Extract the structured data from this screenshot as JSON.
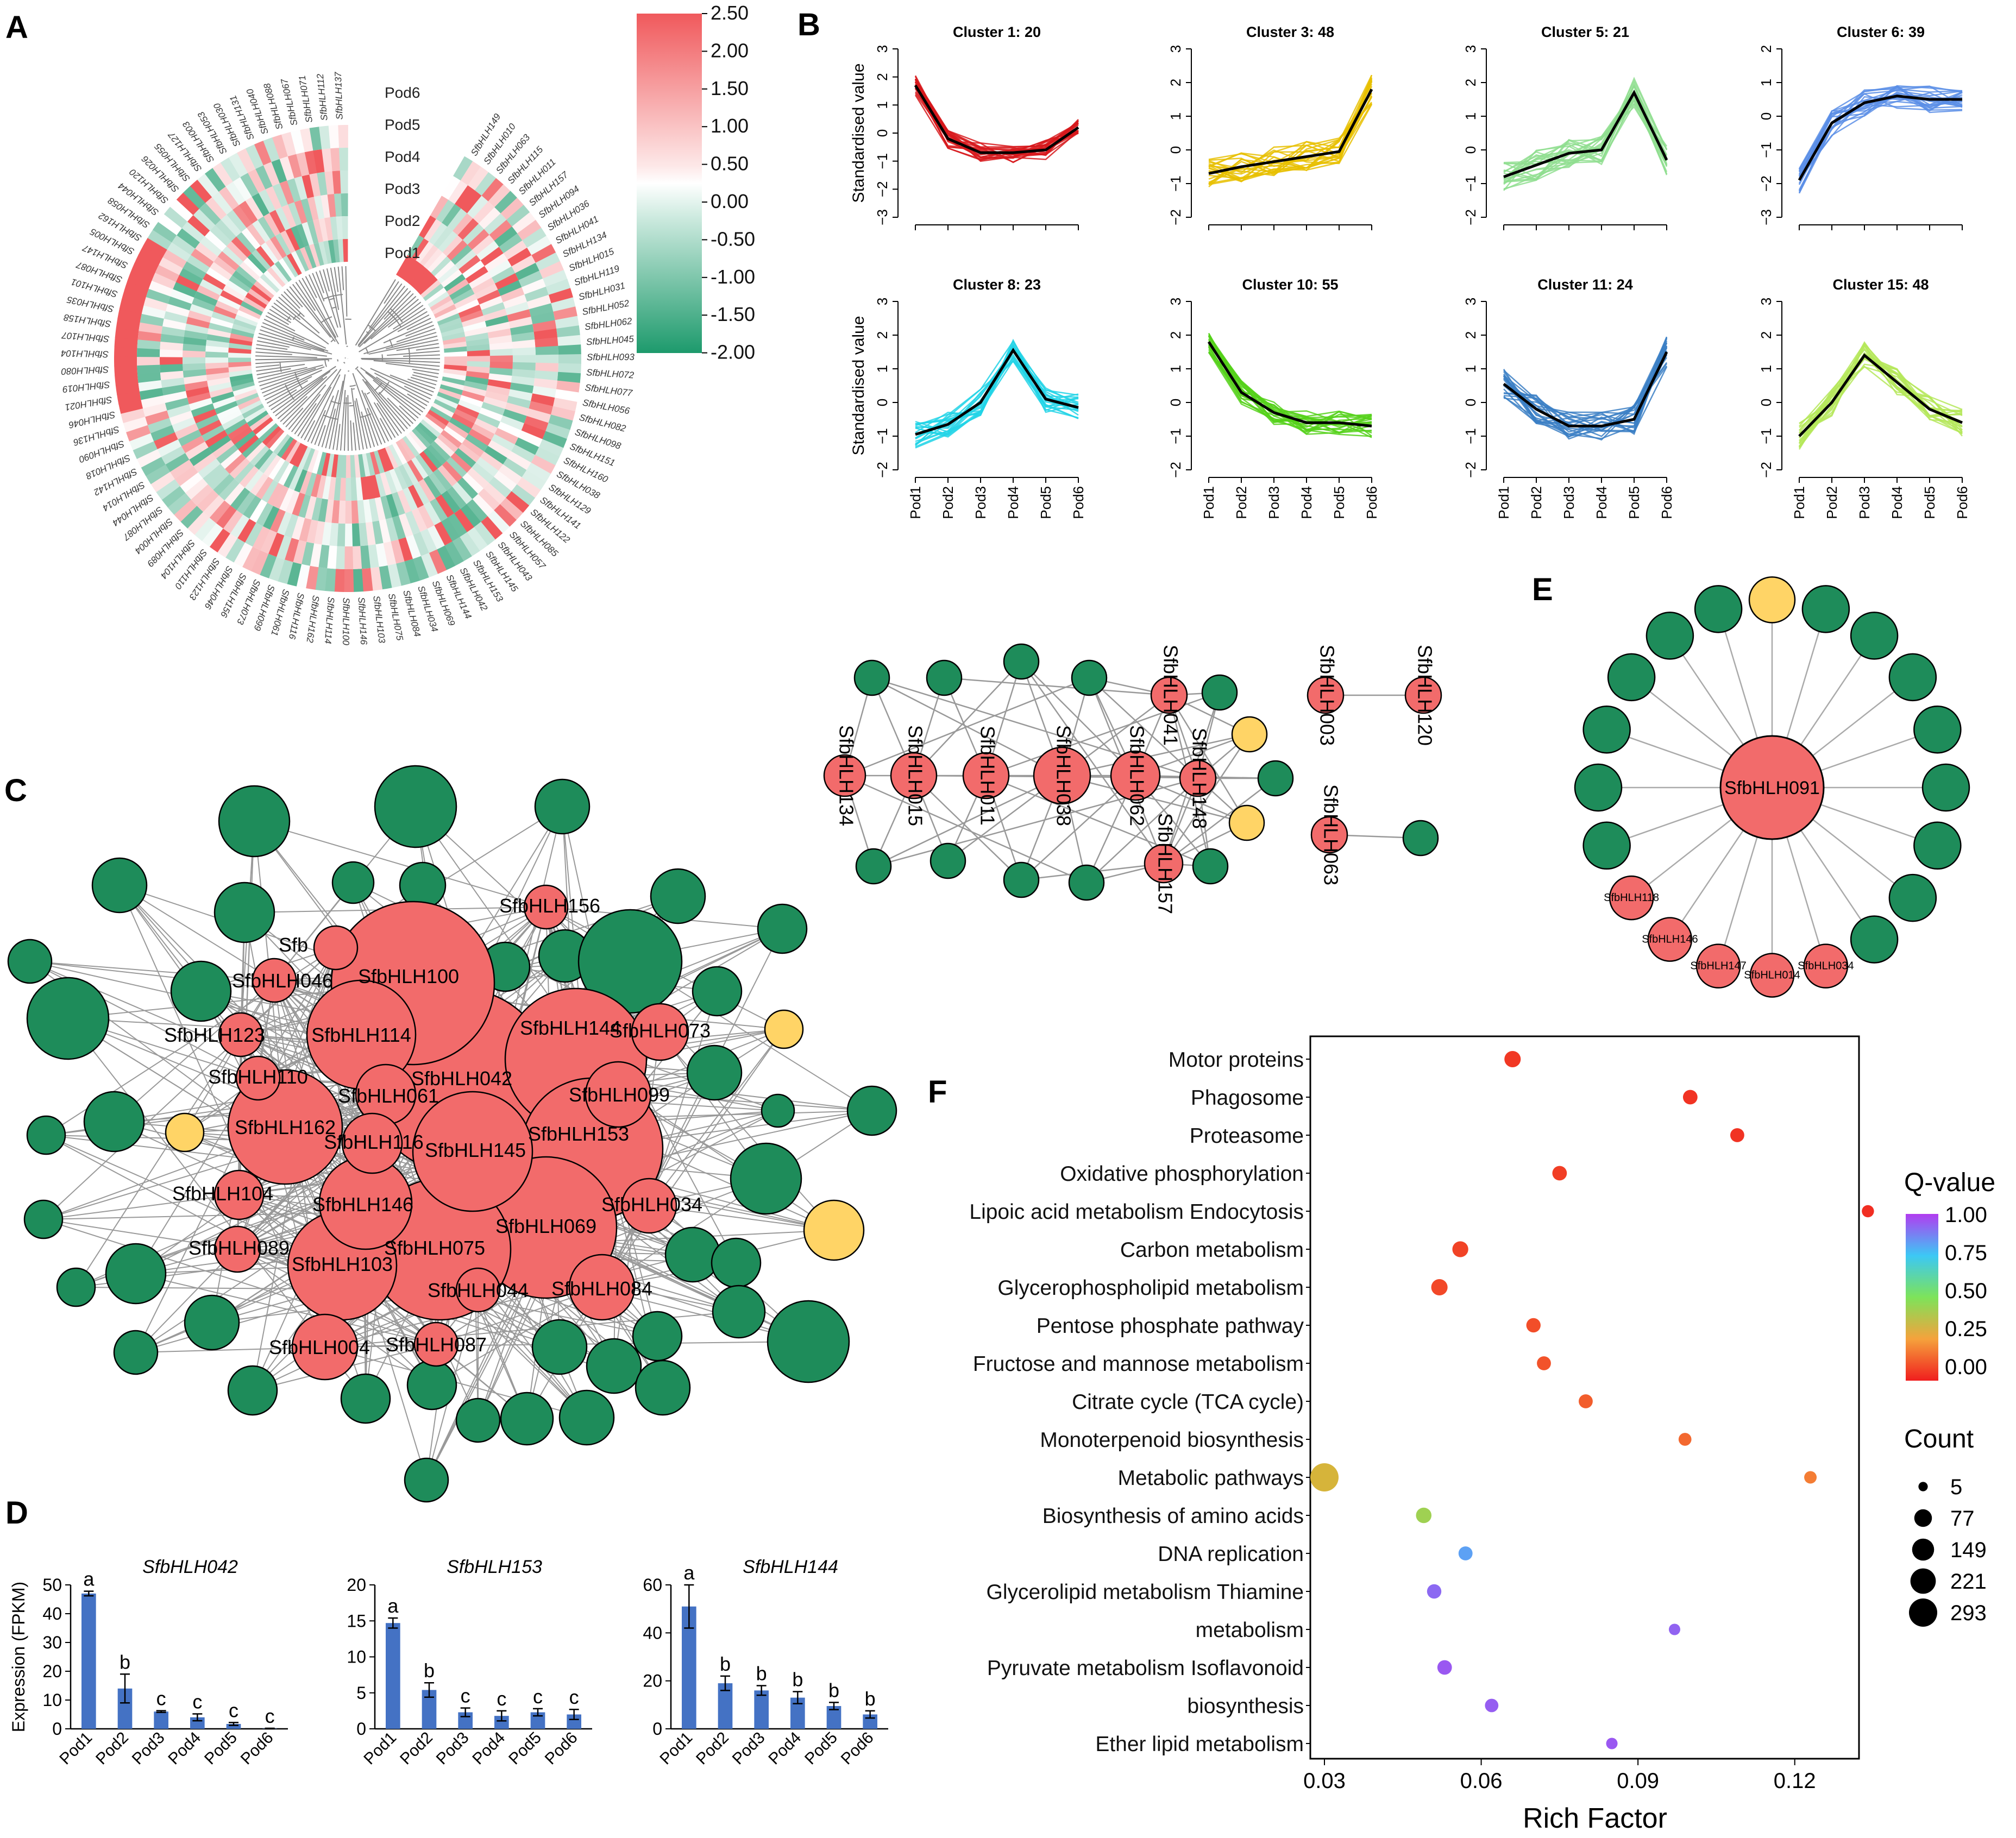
{
  "panels": {
    "a": "A",
    "b": "B",
    "c": "C",
    "d": "D",
    "e": "E",
    "f": "F"
  },
  "heatmap": {
    "colorbar_ticks": [
      "2.50",
      "2.00",
      "1.50",
      "1.00",
      "0.50",
      "0.00",
      "-0.50",
      "-1.00",
      "-1.50",
      "-2.00"
    ],
    "samples": [
      "Pod6",
      "Pod5",
      "Pod4",
      "Pod3",
      "Pod2",
      "Pod1"
    ],
    "colors": {
      "high": "#f0595c",
      "mid": "#ffffff",
      "low": "#1d9a6c"
    },
    "gene_labels": [
      "SfbHLH149",
      "SfbHLH010",
      "SfbHLH063",
      "SfbHLH115",
      "SfbHLH011",
      "SfbHLH157",
      "SfbHLH094",
      "SfbHLH036",
      "SfbHLH041",
      "SfbHLH134",
      "SfbHLH015",
      "SfbHLH119",
      "SfbHLH031",
      "SfbHLH052",
      "SfbHLH062",
      "SfbHLH045",
      "SfbHLH093",
      "SfbHLH072",
      "SfbHLH077",
      "SfbHLH056",
      "SfbHLH082",
      "SfbHLH098",
      "SfbHLH151",
      "SfbHLH160",
      "SfbHLH038",
      "SfbHLH129",
      "SfbHLH141",
      "SfbHLH122",
      "SfbHLH085",
      "SfbHLH057",
      "SfbHLH043",
      "SfbHLH145",
      "SfbHLH153",
      "SfbHLH042",
      "SfbHLH144",
      "SfbHLH069",
      "SfbHLH034",
      "SfbHLH084",
      "SfbHLH075",
      "SfbHLH103",
      "SfbHLH146",
      "SfbHLH100",
      "SfbHLH114",
      "SfbHLH162",
      "SfbHLH116",
      "SfbHLH061",
      "SfbHLH099",
      "SfbHLH073",
      "SfbHLH156",
      "SfbHLH046",
      "SfbHLH123",
      "SfbHLH110",
      "SfbHLH104",
      "SfbHLH089",
      "SfbHLH004",
      "SfbHLH087",
      "SfbHLH044",
      "SfbHLH014",
      "SfbHLH142",
      "SfbHLH018",
      "SfbHLH090",
      "SfbHLH136",
      "SfbHLH046",
      "SfbHLH021",
      "SfbHLH019",
      "SfbHLH080",
      "SfbHLH104",
      "SfbHLH107",
      "SfbHLH158",
      "SfbHLH035",
      "SfbHLH101",
      "SfbHLH087",
      "SfbHLH147",
      "SfbHLH005",
      "SfbHLH162",
      "SfbHLH058",
      "SfbHLH044",
      "SfbHLH120",
      "SfbHLH026",
      "SfbHLH055",
      "SfbHLH127",
      "SfbHLH003",
      "SfbHLH053",
      "SfbHLH030",
      "SfbHLH131",
      "SfbHLH040",
      "SfbHLH088",
      "SfbHLH067",
      "SfbHLH071",
      "SfbHLH112",
      "SfbHLH137"
    ]
  },
  "clusters": {
    "ylabel": "Standardised value",
    "xcats": [
      "Pod1",
      "Pod2",
      "Pod3",
      "Pod4",
      "Pod5",
      "Pod6"
    ],
    "items": [
      {
        "title": "Cluster 1: 20",
        "color": "#d7191c",
        "ylim": [
          -3,
          3
        ],
        "ticks": [
          "3",
          "2",
          "1",
          "0",
          "−1",
          "−2",
          "−3"
        ],
        "centroid": [
          1.7,
          -0.2,
          -0.7,
          -0.7,
          -0.6,
          0.2
        ],
        "amp": 0.35
      },
      {
        "title": "Cluster 3: 48",
        "color": "#e8c000",
        "ylim": [
          -2,
          3
        ],
        "ticks": [
          "3",
          "2",
          "1",
          "0",
          "−1",
          "−2"
        ],
        "centroid": [
          -0.7,
          -0.5,
          -0.35,
          -0.2,
          -0.05,
          1.8
        ],
        "amp": 0.45
      },
      {
        "title": "Cluster 5: 21",
        "color": "#8fde8f",
        "ylim": [
          -2,
          3
        ],
        "ticks": [
          "3",
          "2",
          "1",
          "0",
          "−1",
          "−2"
        ],
        "centroid": [
          -0.8,
          -0.45,
          -0.1,
          0.0,
          1.7,
          -0.3
        ],
        "amp": 0.45
      },
      {
        "title": "Cluster 6: 39",
        "color": "#5b8ee6",
        "ylim": [
          -3,
          2
        ],
        "ticks": [
          "2",
          "1",
          "0",
          "−1",
          "−2",
          "−3"
        ],
        "centroid": [
          -1.9,
          -0.2,
          0.4,
          0.6,
          0.5,
          0.5
        ],
        "amp": 0.4
      },
      {
        "title": "Cluster 8: 23",
        "color": "#22d3e6",
        "ylim": [
          -2,
          3
        ],
        "ticks": [
          "3",
          "2",
          "1",
          "0",
          "−1",
          "−2"
        ],
        "centroid": [
          -0.95,
          -0.65,
          0.0,
          1.55,
          0.1,
          -0.15
        ],
        "amp": 0.4
      },
      {
        "title": "Cluster 10: 55",
        "color": "#55d11a",
        "ylim": [
          -2,
          3
        ],
        "ticks": [
          "3",
          "2",
          "1",
          "0",
          "−1",
          "−2"
        ],
        "centroid": [
          1.8,
          0.3,
          -0.3,
          -0.6,
          -0.6,
          -0.7
        ],
        "amp": 0.35
      },
      {
        "title": "Cluster 11: 24",
        "color": "#3b7fc4",
        "ylim": [
          -2,
          3
        ],
        "ticks": [
          "3",
          "2",
          "1",
          "0",
          "−1",
          "−2"
        ],
        "centroid": [
          0.55,
          -0.2,
          -0.7,
          -0.7,
          -0.5,
          1.5
        ],
        "amp": 0.45
      },
      {
        "title": "Cluster 15: 48",
        "color": "#b5e85a",
        "ylim": [
          -2,
          3
        ],
        "ticks": [
          "3",
          "2",
          "1",
          "0",
          "−1",
          "−2"
        ],
        "centroid": [
          -1.0,
          0.0,
          1.4,
          0.6,
          -0.2,
          -0.6
        ],
        "amp": 0.4
      }
    ]
  },
  "network_c": {
    "labels": [
      "SfbHLH156",
      "SfbHLH100",
      "Sfb",
      "SfbHLH046",
      "SfbHLH123",
      "SfbHLH114",
      "SfbHLH144",
      "SfbHLH073",
      "SfbHLH042",
      "SfbHLH110",
      "SfbHLH061",
      "SfbHLH099",
      "SfbHLH162",
      "SfbHLH116",
      "SfbHLH153",
      "SfbHLH145",
      "SfbHLH104",
      "SfbHLH146",
      "SfbHLH034",
      "SfbHLH069",
      "SfbHLH089",
      "SfbHLH075",
      "SfbHLH103",
      "SfbHLH044",
      "SfbHLH084",
      "SfbHLH004",
      "SfbHLH087"
    ]
  },
  "network_small": {
    "labels": [
      "SfbHLH134",
      "SfbHLH015",
      "SfbHLH011",
      "SfbHLH038",
      "SfbHLH062",
      "SfbHLH041",
      "SfbHLH148",
      "SfbHLH157",
      "SfbHLH003",
      "SfbHLH120",
      "SfbHLH063"
    ]
  },
  "network_e": {
    "hub": "SfbHLH091",
    "labels": [
      "SfbHLH118",
      "SfbHLH146",
      "SfbHLH147",
      "SfbHLH014",
      "SfbHLH034"
    ]
  },
  "bars": {
    "ylabel": "Expression (FPKM)",
    "xcats": [
      "Pod1",
      "Pod2",
      "Pod3",
      "Pod4",
      "Pod5",
      "Pod6"
    ],
    "color": "#4472c4",
    "items": [
      {
        "title": "SfbHLH042",
        "ymax": 50,
        "ticks": [
          "50",
          "40",
          "30",
          "20",
          "10",
          "0"
        ],
        "values": [
          47,
          14,
          6,
          4,
          1.7,
          0.1
        ],
        "errors": [
          0.8,
          5,
          0.3,
          1.2,
          0.5,
          0.1
        ],
        "letters": [
          "a",
          "b",
          "c",
          "c",
          "c",
          "c"
        ]
      },
      {
        "title": "SfbHLH153",
        "ymax": 20,
        "ticks": [
          "20",
          "15",
          "10",
          "5",
          "0"
        ],
        "values": [
          14.7,
          5.4,
          2.3,
          1.8,
          2.3,
          2.0
        ],
        "errors": [
          0.7,
          1.0,
          0.6,
          0.7,
          0.5,
          0.7
        ],
        "letters": [
          "a",
          "b",
          "c",
          "c",
          "c",
          "c"
        ]
      },
      {
        "title": "SfbHLH144",
        "ymax": 60,
        "ticks": [
          "60",
          "40",
          "20",
          "0"
        ],
        "values": [
          51,
          19,
          16,
          13,
          9.5,
          6
        ],
        "errors": [
          9,
          3,
          2,
          2.5,
          1.5,
          1.5
        ],
        "letters": [
          "a",
          "b",
          "b",
          "b",
          "b",
          "b"
        ]
      }
    ]
  },
  "chart_data": {
    "type": "scatter",
    "title": "",
    "xlabel": "Rich Factor",
    "ylabel": "",
    "xlim": [
      0.03,
      0.135
    ],
    "xticks": [
      "0.03",
      "0.06",
      "0.09",
      "0.12"
    ],
    "categories": [
      "Motor proteins",
      "Phagosome",
      "Proteasome",
      "Oxidative phosphorylation",
      "Lipoic acid metabolism Endocytosis",
      "Carbon metabolism",
      "Glycerophospholipid metabolism",
      "Pentose phosphate pathway",
      "Fructose and mannose metabolism",
      "Citrate cycle (TCA cycle)",
      "Monoterpenoid biosynthesis",
      "Metabolic pathways",
      "Biosynthesis of amino acids",
      "DNA replication",
      "Glycerolipid metabolism Thiamine",
      "metabolism",
      "Pyruvate metabolism Isoflavonoid",
      "biosynthesis",
      "Ether lipid metabolism"
    ],
    "points": [
      {
        "y": "Motor proteins",
        "x": 0.066,
        "count": 60,
        "q": 0.05
      },
      {
        "y": "Phagosome",
        "x": 0.1,
        "count": 40,
        "q": 0.04
      },
      {
        "y": "Proteasome",
        "x": 0.109,
        "count": 35,
        "q": 0.04
      },
      {
        "y": "Oxidative phosphorylation",
        "x": 0.075,
        "count": 40,
        "q": 0.06
      },
      {
        "y": "Lipoic acid metabolism Endocytosis",
        "x": 0.134,
        "count": 20,
        "q": 0.03
      },
      {
        "y": "Carbon metabolism",
        "x": 0.056,
        "count": 55,
        "q": 0.07
      },
      {
        "y": "Glycerophospholipid metabolism",
        "x": 0.052,
        "count": 60,
        "q": 0.08
      },
      {
        "y": "Pentose phosphate pathway",
        "x": 0.07,
        "count": 38,
        "q": 0.09
      },
      {
        "y": "Fructose and mannose metabolism",
        "x": 0.072,
        "count": 35,
        "q": 0.1
      },
      {
        "y": "Citrate cycle (TCA cycle)",
        "x": 0.08,
        "count": 35,
        "q": 0.12
      },
      {
        "y": "Monoterpenoid biosynthesis",
        "x": 0.099,
        "count": 25,
        "q": 0.14
      },
      {
        "y": "Metabolic pathways",
        "x": 0.03,
        "count": 293,
        "q": 0.33
      },
      {
        "y": "Metabolic pathways",
        "x": 0.123,
        "count": 22,
        "q": 0.18
      },
      {
        "y": "Biosynthesis of amino acids",
        "x": 0.049,
        "count": 50,
        "q": 0.43
      },
      {
        "y": "DNA replication",
        "x": 0.057,
        "count": 35,
        "q": 0.82
      },
      {
        "y": "Glycerolipid metabolism Thiamine",
        "x": 0.051,
        "count": 38,
        "q": 0.92
      },
      {
        "y": "metabolism",
        "x": 0.097,
        "count": 15,
        "q": 0.93
      },
      {
        "y": "Pyruvate metabolism Isoflavonoid",
        "x": 0.053,
        "count": 40,
        "q": 0.95
      },
      {
        "y": "biosynthesis",
        "x": 0.062,
        "count": 30,
        "q": 0.94
      },
      {
        "y": "Ether lipid metabolism",
        "x": 0.085,
        "count": 15,
        "q": 0.95
      }
    ],
    "legend": {
      "color_title": "Q-value",
      "color_ticks": [
        "1.00",
        "0.75",
        "0.50",
        "0.25",
        "0.00"
      ],
      "size_title": "Count",
      "size_values": [
        "5",
        "77",
        "149",
        "221",
        "293"
      ]
    }
  }
}
